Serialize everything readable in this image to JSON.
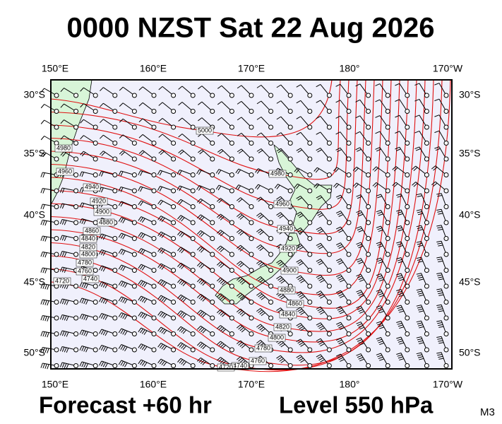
{
  "header": {
    "title": "0000 NZST Sat 22 Aug 2026"
  },
  "footer": {
    "forecast": "Forecast +60 hr",
    "level": "Level 550 hPa",
    "model": "M3"
  },
  "axes": {
    "lon_labels": [
      "150°E",
      "160°E",
      "170°E",
      "180°",
      "170°W"
    ],
    "lat_labels": [
      "30°S",
      "35°S",
      "40°S",
      "45°S",
      "50°S"
    ]
  },
  "contours": [
    5000,
    4980,
    4960,
    4940,
    4920,
    4900,
    4880,
    4860,
    4840,
    4820,
    4800,
    4780,
    4760,
    4740,
    4720
  ]
}
